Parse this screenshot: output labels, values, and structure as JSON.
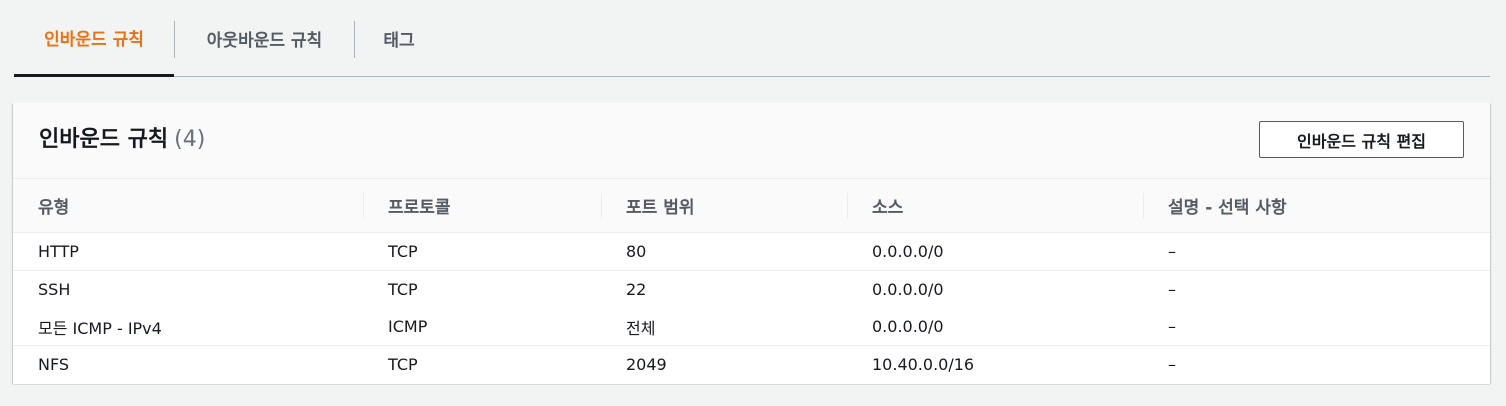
{
  "tabs": [
    {
      "label": "인바운드 규칙"
    },
    {
      "label": "아웃바운드 규칙"
    },
    {
      "label": "태그"
    }
  ],
  "panel": {
    "title": "인바운드 규칙",
    "count": "(4)",
    "edit_button_label": "인바운드 규칙 편집"
  },
  "table": {
    "columns": [
      "유형",
      "프로토콜",
      "포트 범위",
      "소스",
      "설명 - 선택 사항"
    ],
    "rows": [
      [
        "HTTP",
        "TCP",
        "80",
        "0.0.0.0/0",
        "–"
      ],
      [
        "SSH",
        "TCP",
        "22",
        "0.0.0.0/0",
        "–"
      ],
      [
        "모든 ICMP - IPv4",
        "ICMP",
        "전체",
        "0.0.0.0/0",
        "–"
      ],
      [
        "NFS",
        "TCP",
        "2049",
        "10.40.0.0/16",
        "–"
      ]
    ]
  },
  "colors": {
    "active_tab": "#ec7211",
    "active_underline": "#16191f",
    "background": "#f2f3f3"
  }
}
